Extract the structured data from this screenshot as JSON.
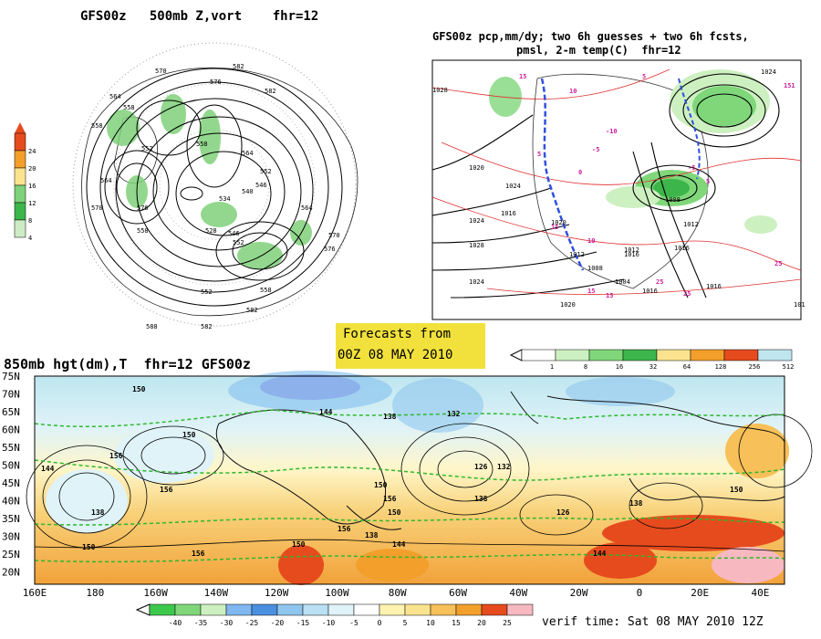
{
  "panel_500mb": {
    "title": "GFS00z   500mb Z,vort    fhr=12",
    "colorbar_ticks": [
      "24",
      "20",
      "16",
      "12",
      "8",
      "4"
    ],
    "colorbar_colors": [
      "#e64b1e",
      "#f29f2b",
      "#fbe38e",
      "#7fd17a",
      "#3cb54a",
      "#cdebc5"
    ],
    "contour_labels": [
      "582",
      "570",
      "576",
      "582",
      "564",
      "558",
      "552",
      "558",
      "564",
      "570",
      "576",
      "558",
      "564",
      "552",
      "546",
      "540",
      "534",
      "528",
      "546",
      "552",
      "564",
      "570",
      "576",
      "558",
      "552",
      "558",
      "582",
      "588",
      "582"
    ]
  },
  "panel_precip": {
    "title_line1": "GFS00z pcp,mm/dy; two 6h guesses + two 6h fcsts,",
    "title_line2": "pmsl, 2-m temp(C)  fhr=12",
    "isobar_labels": [
      "1028",
      "1024",
      "1020",
      "1024",
      "1028",
      "1024",
      "1020",
      "1016",
      "1012",
      "1008",
      "1004",
      "1012",
      "1016",
      "1020",
      "1016",
      "1024",
      "1008",
      "1012",
      "1016",
      "1016",
      "101"
    ],
    "temp_labels": [
      "15",
      "10",
      "5",
      "0",
      "-5",
      "-10",
      "5",
      "15",
      "10",
      "25",
      "25",
      "15",
      "25",
      "15",
      "151",
      "5",
      "-5"
    ],
    "legend_ticks": [
      "1",
      "8",
      "16",
      "32",
      "64",
      "128",
      "256",
      "512"
    ],
    "legend_colors": [
      "#ffffff",
      "#cdf0c0",
      "#7fd77a",
      "#3cb54a",
      "#fbe38e",
      "#f29f2b",
      "#e64b1e",
      "#bfe6ef"
    ]
  },
  "forecast_box": {
    "line1": "Forecasts from",
    "line2": "00Z 08 MAY 2010",
    "color": "#f2e13c"
  },
  "panel_850mb": {
    "title": "850mb hgt(dm),T  fhr=12 GFS00z",
    "lat_labels": [
      "75N",
      "70N",
      "65N",
      "60N",
      "55N",
      "50N",
      "45N",
      "40N",
      "35N",
      "30N",
      "25N",
      "20N"
    ],
    "lon_labels": [
      "160E",
      "180",
      "160W",
      "140W",
      "120W",
      "100W",
      "80W",
      "60W",
      "40W",
      "20W",
      "0",
      "20E",
      "40E"
    ],
    "contour_labels": [
      "150",
      "144",
      "138",
      "132",
      "126",
      "150",
      "156",
      "138",
      "144",
      "150",
      "156",
      "150",
      "156",
      "138",
      "150",
      "156",
      "150",
      "144",
      "138",
      "132",
      "126",
      "138",
      "144",
      "150",
      "156"
    ],
    "temp_ticks": [
      "-40",
      "-35",
      "-30",
      "-25",
      "-20",
      "-15",
      "-10",
      "-5",
      "0",
      "5",
      "10",
      "15",
      "20",
      "25"
    ],
    "temp_colors": [
      "#3cc84a",
      "#7fd77a",
      "#cdf0c0",
      "#7fb7f0",
      "#4a8fe0",
      "#8fc6ef",
      "#b9e0f3",
      "#dff3f8",
      "#ffffff",
      "#fff3b0",
      "#fbe38e",
      "#f7c058",
      "#f29f2b",
      "#e64b1e",
      "#f7b8c0"
    ],
    "verif_time": "verif time: Sat 08 MAY 2010 12Z"
  }
}
